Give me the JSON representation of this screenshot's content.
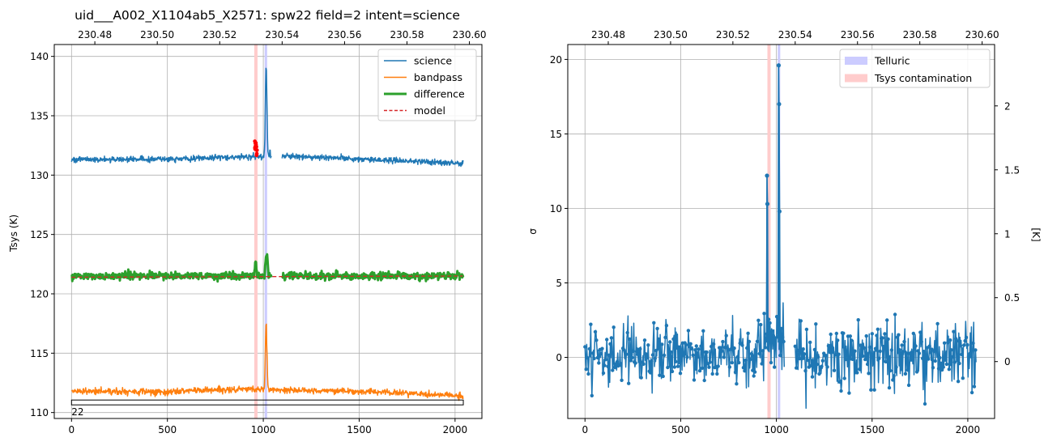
{
  "chart_data": [
    {
      "type": "line",
      "title": "uid___A002_X1104ab5_X2571: spw22 field=2 intent=science",
      "xlabel": "",
      "ylabel": "Tsys (K)",
      "xlim": [
        -90,
        2140
      ],
      "ylim": [
        109.5,
        141
      ],
      "xticks": [
        0,
        500,
        1000,
        1500,
        2000
      ],
      "yticks": [
        110,
        115,
        120,
        125,
        130,
        135,
        140
      ],
      "top_xlim": [
        230.467,
        230.604
      ],
      "top_xticks": [
        "230.48",
        "230.50",
        "230.52",
        "230.54",
        "230.56",
        "230.58",
        "230.60"
      ],
      "grid": true,
      "legend": "top-right",
      "bands": [
        {
          "name": "tsys",
          "x0": 953,
          "x1": 970,
          "color": "#ffcccc"
        },
        {
          "name": "telluric",
          "x0": 1007,
          "x1": 1020,
          "color": "#ccccff"
        }
      ],
      "channel_box": {
        "x0": 0,
        "x1": 2043,
        "y0": 110.7,
        "y1": 110.9,
        "label": "22"
      },
      "series": [
        {
          "name": "science",
          "color": "#1f77b4",
          "width": 1.5,
          "style": "solid",
          "baseline": [
            [
              0,
              131.3
            ],
            [
              500,
              131.35
            ],
            [
              900,
              131.55
            ],
            [
              1100,
              131.6
            ],
            [
              1500,
              131.35
            ],
            [
              2043,
              131.0
            ]
          ],
          "gap": [
            1042,
            1097
          ],
          "noise": 0.12,
          "peaks": [
            {
              "x": 1015,
              "height": 7.6,
              "width": 4
            }
          ],
          "spikes": [
            {
              "x": 1035,
              "y": 132.1
            }
          ]
        },
        {
          "name": "bandpass",
          "color": "#ff7f0e",
          "width": 1.5,
          "style": "solid",
          "baseline": [
            [
              0,
              111.8
            ],
            [
              500,
              111.75
            ],
            [
              900,
              112.0
            ],
            [
              1100,
              111.9
            ],
            [
              1500,
              111.8
            ],
            [
              2043,
              111.4
            ]
          ],
          "gap": null,
          "noise": 0.13,
          "peaks": [
            {
              "x": 1015,
              "height": 5.5,
              "width": 4
            }
          ]
        },
        {
          "name": "difference",
          "color": "#2ca02c",
          "width": 3,
          "style": "solid",
          "baseline": [
            [
              0,
              121.5
            ],
            [
              2043,
              121.5
            ]
          ],
          "gap": [
            1042,
            1097
          ],
          "noise": 0.15,
          "peaks": [
            {
              "x": 960,
              "height": 1.1,
              "width": 4
            },
            {
              "x": 1017,
              "height": 1.9,
              "width": 5
            }
          ]
        },
        {
          "name": "model",
          "color": "#d62728",
          "width": 1.3,
          "style": "dashed",
          "baseline": [
            [
              0,
              121.4
            ],
            [
              2043,
              121.5
            ]
          ],
          "gap": null,
          "noise": 0,
          "peaks": []
        }
      ],
      "flagged_points": {
        "color": "#ff0000",
        "x_range": [
          953,
          970
        ],
        "y_range": [
          131.5,
          132.9
        ]
      }
    },
    {
      "type": "scatter",
      "title": "",
      "xlabel": "",
      "ylabel": "σ",
      "right_ylabel": "[K]",
      "xlim": [
        -90,
        2140
      ],
      "ylim": [
        -4.1,
        21
      ],
      "right_ylim": [
        -0.445,
        2.48
      ],
      "xticks": [
        0,
        500,
        1000,
        1500,
        2000
      ],
      "yticks": [
        0,
        5,
        10,
        15,
        20
      ],
      "right_yticks": [
        0.0,
        0.5,
        1.0,
        1.5,
        2.0
      ],
      "top_xlim": [
        230.467,
        230.604
      ],
      "top_xticks": [
        "230.48",
        "230.50",
        "230.52",
        "230.54",
        "230.56",
        "230.58",
        "230.60"
      ],
      "grid": true,
      "legend": "top-right",
      "bands": [
        {
          "name": "Tsys contamination",
          "x0": 953,
          "x1": 970,
          "color": "#ffcccc"
        },
        {
          "name": "Telluric",
          "x0": 1007,
          "x1": 1020,
          "color": "#ccccff"
        }
      ],
      "series": [
        {
          "name": "sigma",
          "color": "#1f77b4",
          "gap": [
            1042,
            1097
          ],
          "mean": 0.2,
          "noise": 1.05,
          "peaks": [
            {
              "x": 951,
              "height": 12.2
            },
            {
              "x": 953,
              "height": 10.3
            },
            {
              "x": 1012,
              "height": 19.6
            },
            {
              "x": 1014,
              "height": 17.0
            },
            {
              "x": 1016,
              "height": 9.8
            }
          ]
        }
      ]
    }
  ],
  "legend_left": [
    {
      "label": "science",
      "color": "#1f77b4",
      "width": 1.5,
      "dash": ""
    },
    {
      "label": "bandpass",
      "color": "#ff7f0e",
      "width": 1.5,
      "dash": ""
    },
    {
      "label": "difference",
      "color": "#2ca02c",
      "width": 3,
      "dash": ""
    },
    {
      "label": "model",
      "color": "#d62728",
      "width": 1.5,
      "dash": "4,2.5"
    }
  ],
  "legend_right": [
    {
      "label": "Telluric",
      "color": "#ccccff"
    },
    {
      "label": "Tsys contamination",
      "color": "#ffcccc"
    }
  ]
}
